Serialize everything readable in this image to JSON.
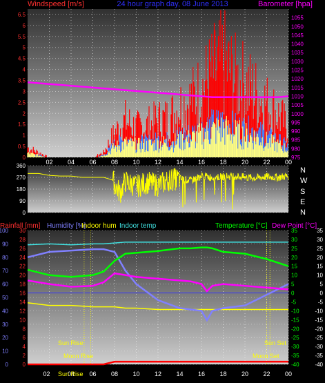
{
  "header": {
    "left_label": "Windspeed [m/s]",
    "center_title": "24 hour graph day, 08 June 2013",
    "right_label": "Barometer [hpa]"
  },
  "wind_dir_labels": [
    "N",
    "W",
    "S",
    "E",
    "N"
  ],
  "bottom_header": {
    "rainfall": "Rainfall [mm]",
    "humidity": "Humidity [%]",
    "indoor_hum": "Indoor hum",
    "indoor_temp": "Indoor temp",
    "temperature": "Temperature [°C]",
    "dewpoint": "Dew Point [°C]"
  },
  "annotations": {
    "sun_rise": "Sun Rise",
    "moon_rise": "Moon Rise",
    "sun_set": "Sun Set",
    "moon_set": "Moon Set",
    "sun_rise_bottom": "Sun Rise",
    "x_tick_02": "02"
  },
  "colors": {
    "wind": "#ff0000",
    "gust": "#ffff80",
    "avg_wind": "#4080ff",
    "barometer": "#ff00ff",
    "direction": "#ffff00",
    "humidity": "#8080ff",
    "indoor_hum": "#ffff00",
    "indoor_temp": "#40e0e0",
    "temperature": "#00ff00",
    "dewpoint": "#ff00ff",
    "rain": "#ff0000",
    "grid": "#ffffff",
    "left_axis_text": "#ff3030",
    "right_axis_text": "#ff00ff",
    "temp_axis_text": "#00ff00"
  },
  "chart_data": [
    {
      "type": "bar",
      "title": "24 hour graph day, 08 June 2013",
      "ylabel": "Windspeed [m/s]",
      "y2label": "Barometer [hpa]",
      "ylim": [
        0,
        6.75
      ],
      "y2lim": [
        975,
        1060
      ],
      "grid": true,
      "x_ticks": [
        "02",
        "04",
        "06",
        "08",
        "10",
        "12",
        "14",
        "16",
        "18",
        "20",
        "22",
        "00"
      ],
      "y_ticks": [
        "0",
        "0.5",
        "1",
        "1.5",
        "2",
        "2.5",
        "3",
        "3.5",
        "4",
        "4.5",
        "5",
        "5.5",
        "6",
        "6.5"
      ],
      "y2_ticks": [
        "975",
        "980",
        "985",
        "990",
        "995",
        "1000",
        "1005",
        "1010",
        "1015",
        "1020",
        "1025",
        "1030",
        "1035",
        "1040",
        "1045",
        "1050",
        "1055"
      ],
      "x_hours": [
        0,
        1,
        2,
        3,
        4,
        5,
        6,
        7,
        8,
        9,
        10,
        11,
        12,
        13,
        14,
        15,
        16,
        17,
        18,
        19,
        20,
        21,
        22,
        23,
        24
      ],
      "series": [
        {
          "name": "Windspeed",
          "values": [
            0.4,
            0.2,
            0,
            0,
            0,
            0,
            0,
            0.2,
            1.0,
            1.5,
            1.2,
            1.3,
            1.5,
            1.6,
            2.1,
            2.3,
            2.8,
            3.4,
            3.9,
            3.2,
            3.0,
            2.6,
            2.2,
            1.8,
            1.2
          ]
        },
        {
          "name": "Gust",
          "values": [
            0.2,
            0.1,
            0,
            0,
            0,
            0,
            0,
            0.1,
            0.5,
            0.7,
            0.6,
            0.6,
            0.7,
            0.7,
            0.8,
            0.9,
            1.1,
            1.3,
            1.4,
            1.2,
            1.1,
            1.0,
            0.8,
            0.6,
            0.4
          ]
        },
        {
          "name": "Average wind",
          "values": [
            0.1,
            0.1,
            0,
            0,
            0,
            0,
            0,
            0.1,
            0.6,
            0.8,
            0.7,
            0.7,
            0.8,
            0.8,
            1.0,
            1.1,
            1.3,
            1.5,
            1.6,
            1.4,
            1.3,
            1.2,
            1.0,
            0.8,
            0.5
          ]
        },
        {
          "name": "Barometer",
          "values": [
            1018,
            1017.5,
            1017,
            1016.5,
            1016,
            1015.5,
            1015,
            1014.5,
            1014,
            1013.5,
            1013,
            1012.5,
            1012,
            1011.5,
            1011,
            1010.5,
            1010,
            1009.5,
            1009.5,
            1009.5,
            1009.5,
            1009.5,
            1009.5,
            1009.5,
            1010
          ]
        }
      ]
    },
    {
      "type": "line",
      "title": "",
      "ylabel": "",
      "ylim": [
        0,
        360
      ],
      "grid": true,
      "y_ticks": [
        "0",
        "90",
        "180",
        "270",
        "360"
      ],
      "x_hours": [
        0,
        1,
        2,
        3,
        4,
        5,
        6,
        7,
        7.8,
        8.5,
        9,
        10,
        11,
        12,
        13,
        14,
        15,
        16,
        17,
        18,
        19,
        20,
        21,
        22,
        23,
        24
      ],
      "series": [
        {
          "name": "Wind direction",
          "values": [
            300,
            300,
            285,
            280,
            280,
            270,
            270,
            270,
            250,
            150,
            240,
            200,
            230,
            210,
            250,
            260,
            245,
            280,
            270,
            275,
            280,
            270,
            265,
            275,
            270,
            280
          ]
        }
      ]
    },
    {
      "type": "line",
      "title": "",
      "ylabel": "Humidity [%]",
      "y2label": "Temperature [°C]",
      "ylim": [
        0,
        100
      ],
      "y2lim": [
        -40,
        35
      ],
      "grid": true,
      "x_ticks": [
        "02",
        "04",
        "06",
        "08",
        "10",
        "12",
        "14",
        "16",
        "18",
        "20",
        "22",
        "00"
      ],
      "y_ticks_humidity": [
        "0",
        "10",
        "20",
        "30",
        "40",
        "50",
        "60",
        "70",
        "80",
        "90",
        "100"
      ],
      "y_ticks_rain": [
        "0",
        "2",
        "4",
        "6",
        "8",
        "10",
        "12",
        "14",
        "16",
        "18",
        "20",
        "22",
        "24",
        "26",
        "28",
        "30"
      ],
      "y_ticks_temp": [
        "-40",
        "-35",
        "-30",
        "-25",
        "-20",
        "-15",
        "-10",
        "-5",
        "0",
        "5",
        "10",
        "15",
        "20",
        "25",
        "30",
        "35"
      ],
      "x_hours": [
        0,
        2,
        4,
        6,
        7,
        8,
        9,
        10,
        12,
        14,
        15,
        16,
        16.5,
        17,
        18,
        20,
        22,
        24
      ],
      "series": [
        {
          "name": "Humidity",
          "values": [
            80,
            84,
            85,
            86,
            86,
            84,
            70,
            60,
            48,
            42,
            41,
            40,
            33,
            40,
            42,
            44,
            52,
            60
          ]
        },
        {
          "name": "Indoor hum",
          "values": [
            46,
            44,
            44,
            43,
            43,
            43,
            42,
            42,
            41,
            41,
            41,
            41,
            41,
            41,
            41,
            41,
            41,
            41
          ]
        },
        {
          "name": "Indoor temp",
          "values": [
            27,
            27.5,
            27,
            27.5,
            27.5,
            28,
            28.5,
            28.5,
            28.5,
            28.5,
            28.5,
            28.5,
            28.5,
            28.5,
            28.5,
            28.5,
            28.5,
            28.5
          ]
        },
        {
          "name": "Temperature",
          "values": [
            13,
            10,
            9,
            10,
            12,
            18,
            22,
            22.5,
            23.5,
            25,
            25,
            25.5,
            25.5,
            25,
            23,
            22,
            19,
            15
          ]
        },
        {
          "name": "Dew Point",
          "values": [
            7,
            5,
            3.5,
            4,
            6,
            11,
            10,
            9,
            8,
            7,
            6.5,
            5,
            1,
            4,
            5,
            4,
            3,
            2
          ]
        },
        {
          "name": "Rainfall",
          "values": [
            0,
            0,
            0,
            0,
            0,
            0.6,
            0.6,
            0.6,
            0.6,
            0.6,
            0.6,
            0.6,
            0.6,
            0.6,
            0.6,
            0.6,
            0.6,
            0.6
          ]
        }
      ],
      "events": {
        "sun_rise_hour": 5.2,
        "moon_rise_hour": 5.8,
        "sun_set_hour": 22.3,
        "moon_set_hour": 22.0
      }
    }
  ]
}
